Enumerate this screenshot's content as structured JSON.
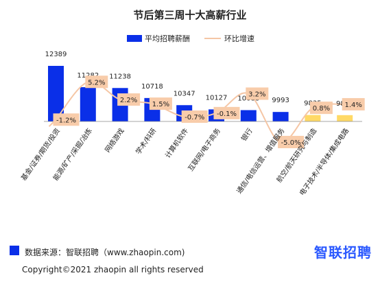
{
  "chart_data": {
    "type": "bar",
    "title": "节后第三周十大高薪行业",
    "categories": [
      "基金/证券/期货/投资",
      "能源/矿产/采掘/冶炼",
      "网络游戏",
      "学术/科研",
      "计算机软件",
      "互联网/电子商务",
      "银行",
      "通信/电信运营、增值服务",
      "航空/航天研究与制造",
      "电子技术/半导体/集成电路"
    ],
    "series": [
      {
        "name": "平均招聘薪酬",
        "type": "bar",
        "values": [
          12389,
          11282,
          11238,
          10718,
          10347,
          10127,
          10088,
          9993,
          9835,
          9828
        ],
        "labels": [
          "12389",
          "11282",
          "11238",
          "10718",
          "10347",
          "10127",
          "10088",
          "9993",
          "9835",
          "9828"
        ]
      },
      {
        "name": "环比增速",
        "type": "line",
        "values": [
          -1.2,
          5.2,
          2.2,
          1.5,
          -0.7,
          -0.1,
          3.2,
          -5.0,
          0.8,
          1.4
        ],
        "labels": [
          "-1.2%",
          "5.2%",
          "2.2%",
          "1.5%",
          "-0.7%",
          "-0.1%",
          "3.2%",
          "-5.0%",
          "0.8%",
          "1.4%"
        ]
      }
    ],
    "legend_position": "top",
    "grid": false,
    "colors": {
      "bar_primary": "#0a2fe8",
      "bar_highlight": "#ffd966",
      "line": "#f5c6a5",
      "label_box": "#f8ccaa"
    },
    "highlight_indices": [
      8,
      9
    ]
  },
  "footer": {
    "source": "数据来源：智联招聘（www.zhaopin.com)",
    "brand": "智联招聘",
    "copyright": "Copyright©2021 zhaopin all rights reserved"
  }
}
